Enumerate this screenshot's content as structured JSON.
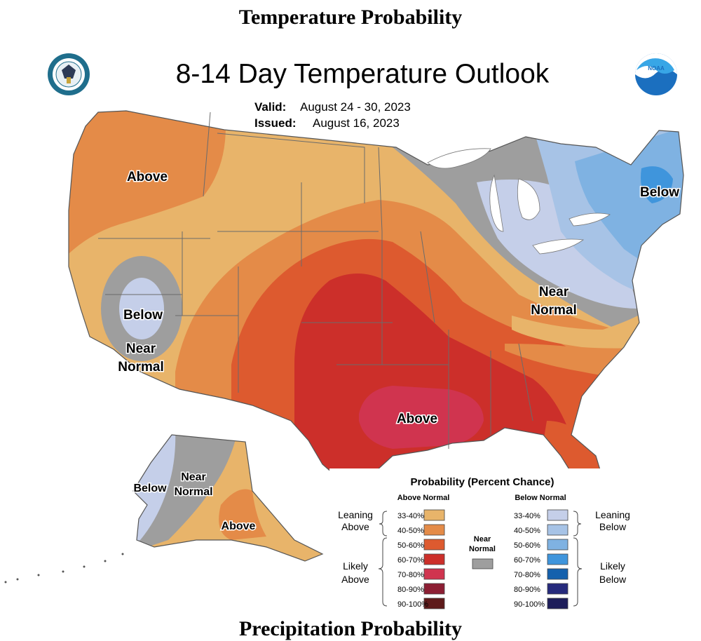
{
  "page": {
    "heading_top": "Temperature Probability",
    "heading_bottom": "Precipitation Probability"
  },
  "map": {
    "title": "8-14 Day Temperature Outlook",
    "valid_label": "Valid:",
    "valid_value": "August 24 - 30, 2023",
    "issued_label": "Issued:",
    "issued_value": "August 16, 2023",
    "logos": [
      "doc-seal-icon",
      "noaa-logo-icon"
    ],
    "region_labels": {
      "west": "Above",
      "northeast": "Below",
      "southwest_below": "Below",
      "southwest_near_1": "Near",
      "southwest_near_2": "Normal",
      "east_near_1": "Near",
      "east_near_2": "Normal",
      "south": "Above",
      "alaska_below": "Below",
      "alaska_near_1": "Near",
      "alaska_near_2": "Normal",
      "alaska_above": "Above"
    },
    "colors": {
      "above_33_40": "#e8b46a",
      "above_40_50": "#e48b48",
      "above_50_60": "#dd5a2f",
      "above_60_70": "#cc2f2a",
      "above_70_80": "#d0344f",
      "above_80_90": "#8c1e33",
      "above_90_100": "#5e1a1a",
      "near_normal": "#9e9e9e",
      "below_33_40": "#c5cfe9",
      "below_40_50": "#a7c3e6",
      "below_50_60": "#7fb2e2",
      "below_60_70": "#3f95dc",
      "below_70_80": "#1561ad",
      "below_80_90": "#262a7c",
      "below_90_100": "#1d1d5a"
    }
  },
  "legend": {
    "title": "Probability (Percent Chance)",
    "above_header": "Above Normal",
    "below_header": "Below Normal",
    "near_label_1": "Near",
    "near_label_2": "Normal",
    "leaning_above_1": "Leaning",
    "leaning_above_2": "Above",
    "likely_above_1": "Likely",
    "likely_above_2": "Above",
    "leaning_below_1": "Leaning",
    "leaning_below_2": "Below",
    "likely_below_1": "Likely",
    "likely_below_2": "Below",
    "above_bins": [
      "33-40%",
      "40-50%",
      "50-60%",
      "60-70%",
      "70-80%",
      "80-90%",
      "90-100%"
    ],
    "below_bins": [
      "33-40%",
      "40-50%",
      "50-60%",
      "60-70%",
      "70-80%",
      "80-90%",
      "90-100%"
    ]
  }
}
